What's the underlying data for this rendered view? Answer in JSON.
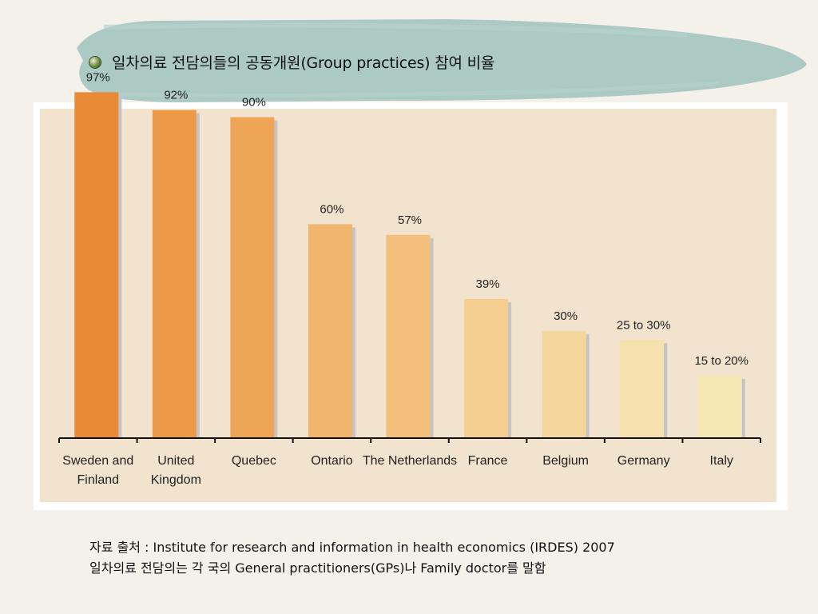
{
  "slide": {
    "title": "일차의료 전담의들의 공동개원(Group practices) 참여 비율",
    "bullet_icon": "leaf-bullet-icon",
    "banner_color": "#9fc2bd",
    "source_line": "자료 출처 : Institute for research and information in health economics (IRDES) 2007",
    "note_line": "일차의료 전담의는 각 국의 General practitioners(GPs)나 Family doctor를 말함"
  },
  "chart_data": {
    "type": "bar",
    "title": "",
    "xlabel": "",
    "ylabel": "",
    "ylim": [
      0,
      100
    ],
    "grid": false,
    "categories": [
      [
        "Sweden and",
        "Finland"
      ],
      [
        "United",
        "Kingdom"
      ],
      [
        "Quebec"
      ],
      [
        "Ontario"
      ],
      [
        "The Netherlands"
      ],
      [
        "France"
      ],
      [
        "Belgium"
      ],
      [
        "Germany"
      ],
      [
        "Italy"
      ]
    ],
    "values": [
      97,
      92,
      90,
      60,
      57,
      39,
      30,
      27.5,
      17.5
    ],
    "value_labels": [
      "97%",
      "92%",
      "90%",
      "60%",
      "57%",
      "39%",
      "30%",
      "25 to 30%",
      "15 to 20%"
    ],
    "colors": [
      "#e98a36",
      "#ec9a48",
      "#eea556",
      "#f1b56d",
      "#f2bf7c",
      "#f4cd8f",
      "#f5d79e",
      "#f6e0ab",
      "#f5e8b5"
    ],
    "shadow_color": "#c4c4c4",
    "panel_color": "#f1e3cd"
  }
}
